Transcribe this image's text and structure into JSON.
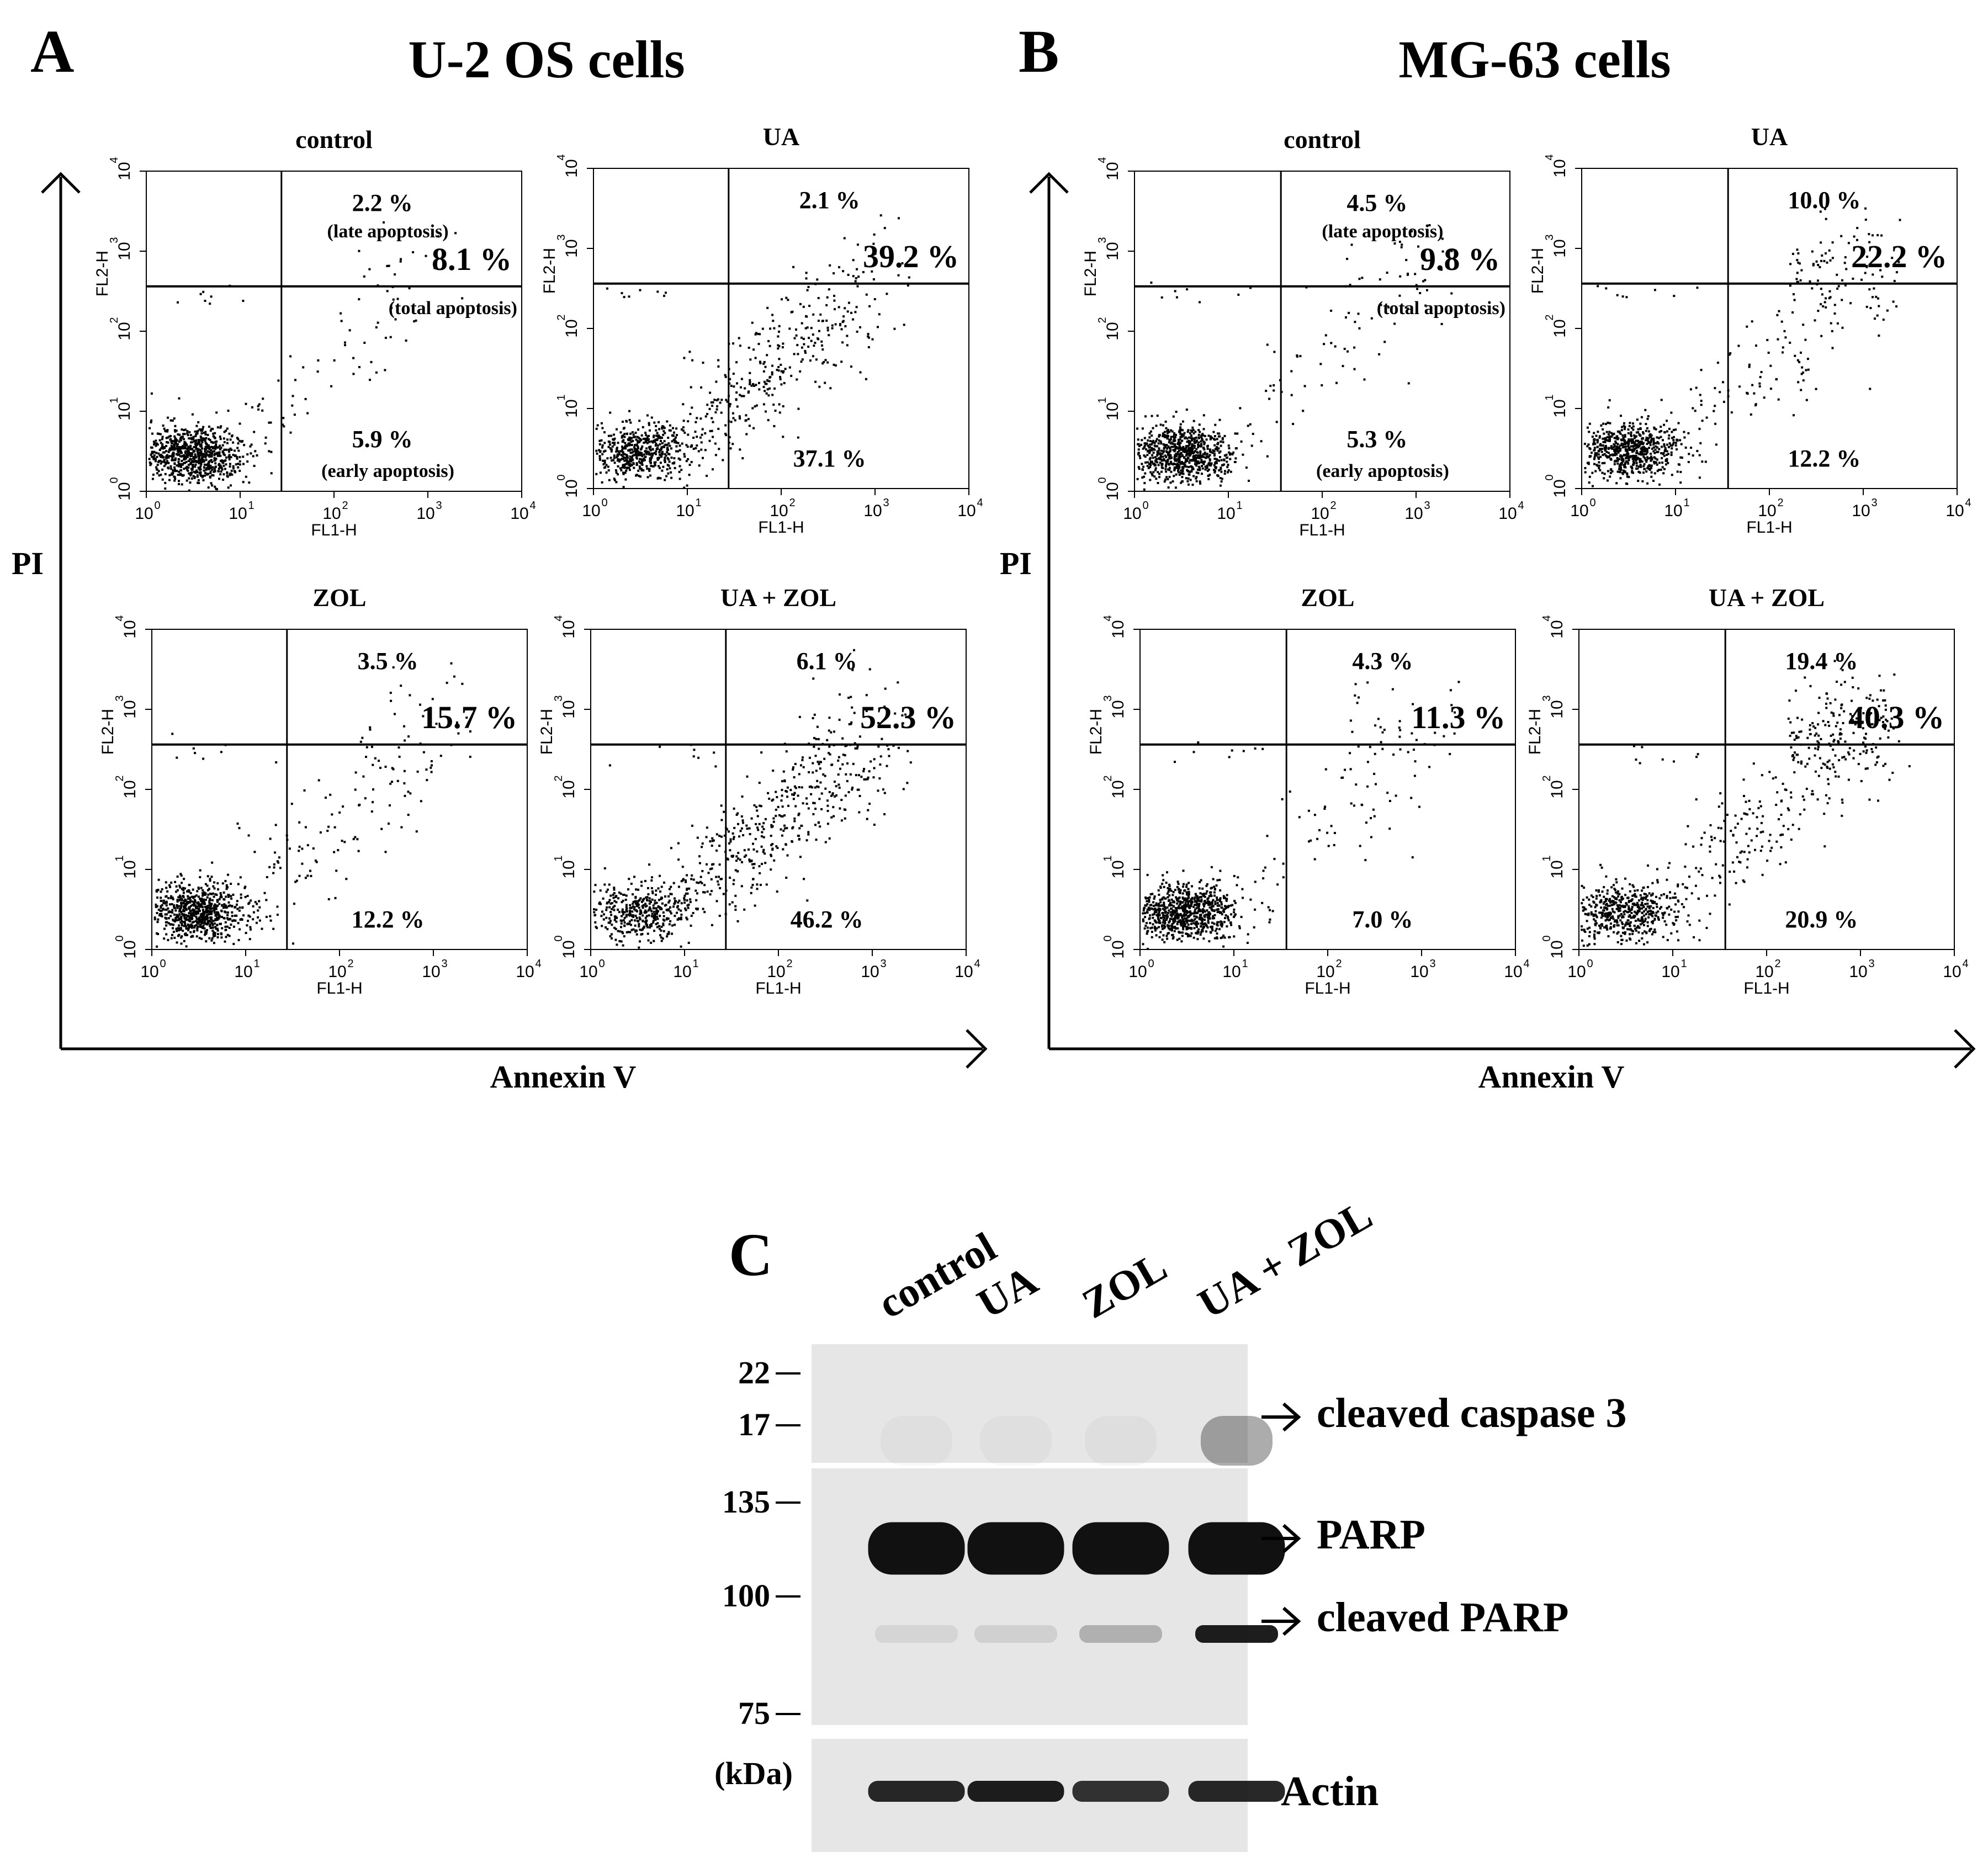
{
  "panel_a": {
    "letter": "A",
    "title": "U-2 OS cells",
    "y_axis_label": "PI",
    "x_axis_label": "Annexin V",
    "plots": [
      {
        "name": "control",
        "q2": "2.2 %",
        "q2_note": "(late apoptosis)",
        "total": "8.1 %",
        "total_note": "(total apoptosis)",
        "q4": "5.9 %",
        "q4_note": "(early apoptosis)"
      },
      {
        "name": "UA",
        "q2": "2.1 %",
        "q2_note": "",
        "total": "39.2 %",
        "total_note": "",
        "q4": "37.1 %",
        "q4_note": ""
      },
      {
        "name": "ZOL",
        "q2": "3.5 %",
        "q2_note": "",
        "total": "15.7 %",
        "total_note": "",
        "q4": "12.2 %",
        "q4_note": ""
      },
      {
        "name": "UA + ZOL",
        "q2": "6.1 %",
        "q2_note": "",
        "total": "52.3 %",
        "total_note": "",
        "q4": "46.2 %",
        "q4_note": ""
      }
    ]
  },
  "panel_b": {
    "letter": "B",
    "title": "MG-63 cells",
    "y_axis_label": "PI",
    "x_axis_label": "Annexin V",
    "plots": [
      {
        "name": "control",
        "q2": "4.5 %",
        "q2_note": "(late apoptosis)",
        "total": "9.8 %",
        "total_note": "(total apoptosis)",
        "q4": "5.3 %",
        "q4_note": "(early apoptosis)"
      },
      {
        "name": "UA",
        "q2": "10.0 %",
        "q2_note": "",
        "total": "22.2 %",
        "total_note": "",
        "q4": "12.2 %",
        "q4_note": ""
      },
      {
        "name": "ZOL",
        "q2": "4.3 %",
        "q2_note": "",
        "total": "11.3 %",
        "total_note": "",
        "q4": "7.0 %",
        "q4_note": ""
      },
      {
        "name": "UA + ZOL",
        "q2": "19.4 %",
        "q2_note": "",
        "total": "40.3 %",
        "total_note": "",
        "q4": "20.9 %",
        "q4_note": ""
      }
    ]
  },
  "flow_axes": {
    "x_channel": "FL1-H",
    "y_channel": "FL2-H",
    "tick_base": "10",
    "tick_exponents": [
      "0",
      "1",
      "2",
      "3",
      "4"
    ]
  },
  "panel_c": {
    "letter": "C",
    "lanes": [
      "control",
      "UA",
      "ZOL",
      "UA + ZOL"
    ],
    "markers_top": [
      "22",
      "17"
    ],
    "markers_mid": [
      "135",
      "100",
      "75"
    ],
    "kda_label": "(kDa)",
    "band_labels": [
      "cleaved caspase 3",
      "PARP",
      "cleaved PARP",
      "Actin"
    ],
    "band_intensity": {
      "cleaved_caspase_3": [
        0.03,
        0.03,
        0.04,
        0.35
      ],
      "parp": [
        1.0,
        1.0,
        1.0,
        1.0
      ],
      "cleaved_parp": [
        0.08,
        0.1,
        0.25,
        0.95
      ],
      "actin": [
        0.9,
        0.95,
        0.85,
        0.9
      ]
    }
  },
  "colors": {
    "ink": "#000000",
    "blot_bg": "#e6e6e6",
    "band": "#111111"
  }
}
